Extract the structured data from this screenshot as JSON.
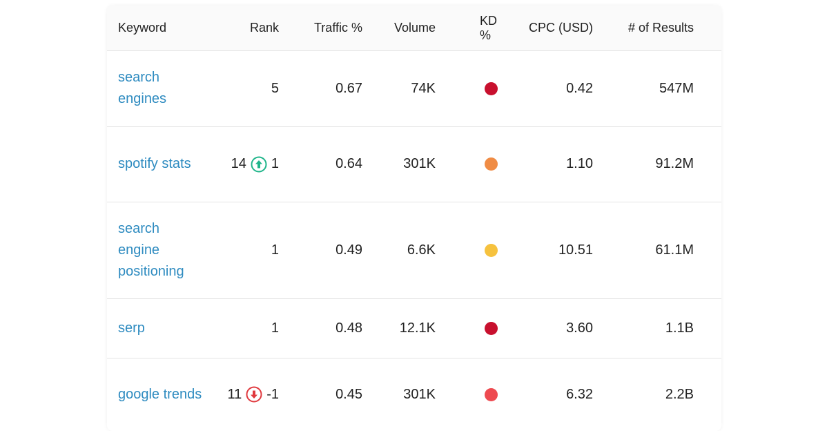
{
  "table": {
    "headers": [
      "Keyword",
      "Rank",
      "Traffic %",
      "Volume",
      "KD %",
      "CPC (USD)",
      "# of Results"
    ],
    "rows": [
      {
        "keyword": "search engines",
        "rank": "5",
        "traffic": "0.67",
        "volume": "74K",
        "kd_color": "#c8102e",
        "cpc": "0.42",
        "results": "547M"
      },
      {
        "keyword": "spotify stats",
        "rank": "14",
        "rank_change": {
          "direction": "up",
          "text": "1"
        },
        "traffic": "0.64",
        "volume": "301K",
        "kd_color": "#f08c45",
        "cpc": "1.10",
        "results": "91.2M"
      },
      {
        "keyword": "search engine positioning",
        "rank": "1",
        "traffic": "0.49",
        "volume": "6.6K",
        "kd_color": "#f6c23e",
        "cpc": "10.51",
        "results": "61.1M"
      },
      {
        "keyword": "serp",
        "rank": "1",
        "traffic": "0.48",
        "volume": "12.1K",
        "kd_color": "#c8102e",
        "cpc": "3.60",
        "results": "1.1B"
      },
      {
        "keyword": "google trends",
        "rank": "11",
        "rank_change": {
          "direction": "down",
          "text": "-1"
        },
        "traffic": "0.45",
        "volume": "301K",
        "kd_color": "#ee4a50",
        "cpc": "6.32",
        "results": "2.2B"
      }
    ]
  }
}
